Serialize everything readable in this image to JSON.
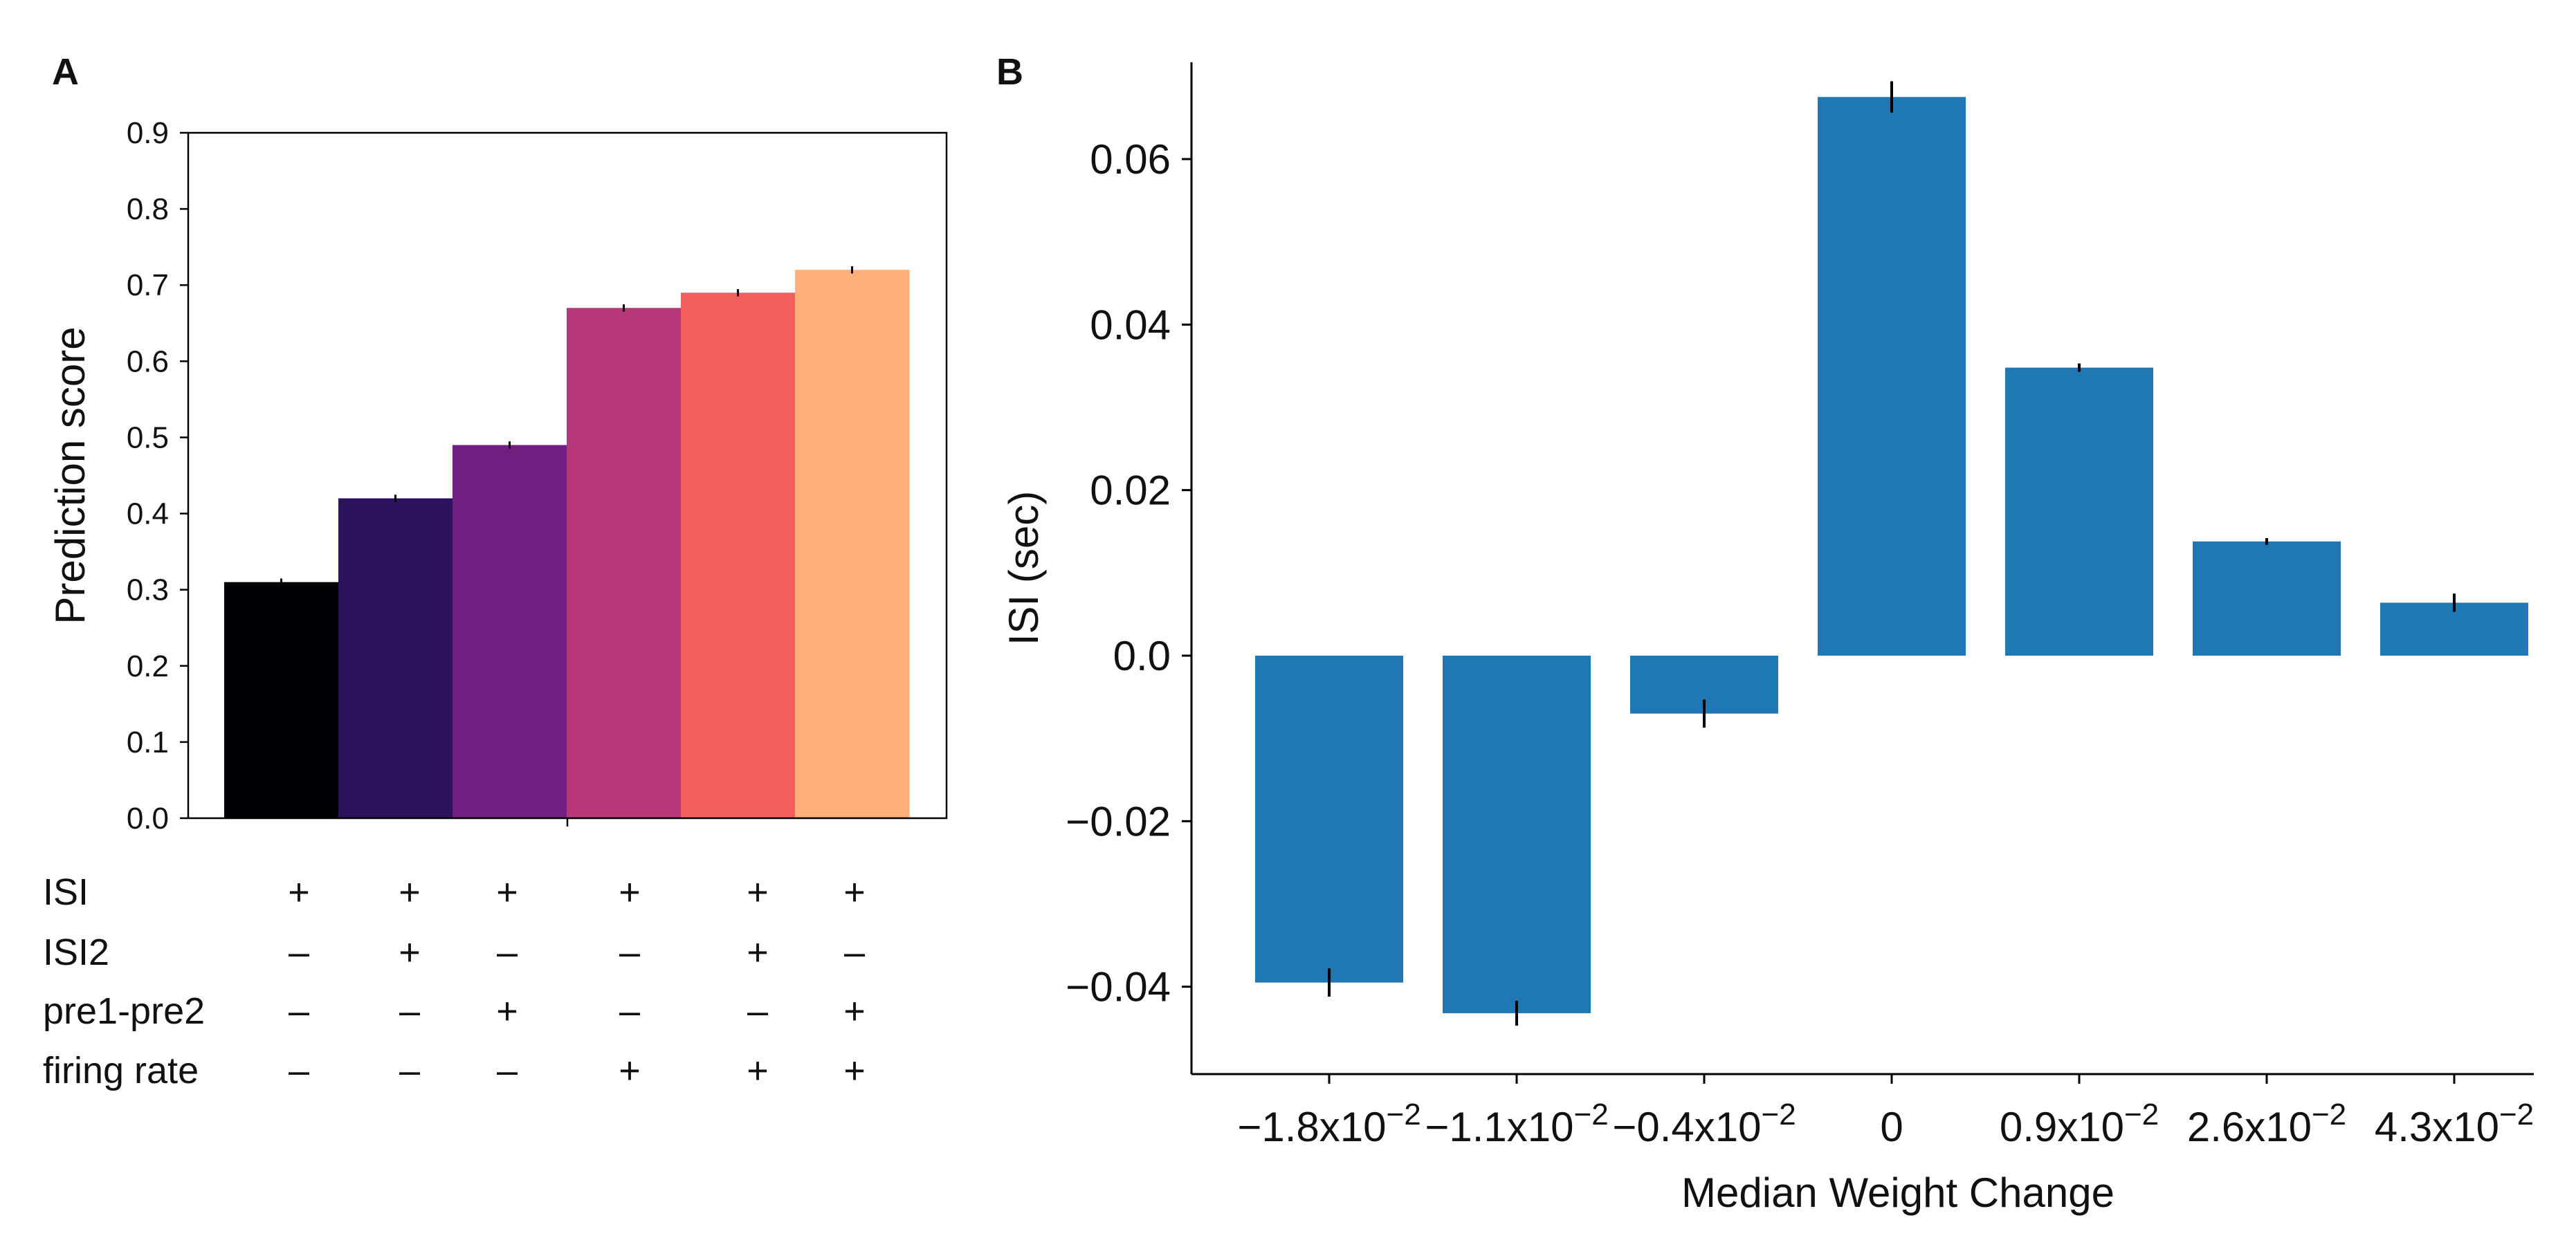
{
  "panels": {
    "a": {
      "label": "A"
    },
    "b": {
      "label": "B"
    }
  },
  "chart_data": [
    {
      "type": "bar",
      "panel": "A",
      "title": "",
      "xlabel": "",
      "ylabel": "Prediction score",
      "ylim": [
        0,
        0.9
      ],
      "yticks": [
        0.0,
        0.1,
        0.2,
        0.3,
        0.4,
        0.5,
        0.6,
        0.7,
        0.8,
        0.9
      ],
      "ytick_labels": [
        "0.0",
        "0.1",
        "0.2",
        "0.3",
        "0.4",
        "0.5",
        "0.6",
        "0.7",
        "0.8",
        "0.9"
      ],
      "categories": [
        "ISI",
        "ISI+ISI2",
        "ISI+pre1-pre2",
        "ISI+firing rate",
        "ISI+ISI2+firing rate",
        "ISI+pre1-pre2+firing rate"
      ],
      "values": [
        0.31,
        0.42,
        0.49,
        0.67,
        0.69,
        0.72
      ],
      "errors": [
        0.002,
        0.002,
        0.002,
        0.002,
        0.002,
        0.002
      ],
      "colors": [
        "#000004",
        "#2c115f",
        "#721f81",
        "#b73779",
        "#f1605d",
        "#feb078"
      ],
      "grid": false,
      "feature_table": {
        "rows": [
          "ISI",
          "ISI2",
          "pre1-pre2",
          "firing rate"
        ],
        "values": [
          [
            "+",
            "+",
            "+",
            "+",
            "+",
            "+"
          ],
          [
            "–",
            "+",
            "–",
            "–",
            "+",
            "–"
          ],
          [
            "–",
            "–",
            "+",
            "–",
            "–",
            "+"
          ],
          [
            "–",
            "–",
            "–",
            "+",
            "+",
            "+"
          ]
        ]
      }
    },
    {
      "type": "bar",
      "panel": "B",
      "title": "",
      "xlabel": "Median Weight Change",
      "ylabel": "ISI (sec)",
      "ylim": [
        -0.05,
        0.07
      ],
      "yticks": [
        -0.04,
        -0.02,
        0.0,
        0.02,
        0.04,
        0.06
      ],
      "ytick_labels": [
        "−0.04",
        "−0.02",
        "0.0",
        "0.02",
        "0.04",
        "0.06"
      ],
      "categories": [
        "−1.8x10⁻²",
        "−1.1x10⁻²",
        "−0.4x10⁻²",
        "0",
        "0.9x10⁻²",
        "2.6x10⁻²",
        "4.3x10⁻²"
      ],
      "category_parts": [
        {
          "base": "−1.8x10",
          "exp": "−2"
        },
        {
          "base": "−1.1x10",
          "exp": "−2"
        },
        {
          "base": "−0.4x10",
          "exp": "−2"
        },
        {
          "base": "0",
          "exp": ""
        },
        {
          "base": "0.9x10",
          "exp": "−2"
        },
        {
          "base": "2.6x10",
          "exp": "−2"
        },
        {
          "base": "4.3x10",
          "exp": "−2"
        }
      ],
      "values": [
        -0.0395,
        -0.0432,
        -0.007,
        0.0675,
        0.0348,
        0.0138,
        0.0064
      ],
      "errors": [
        0.0017,
        0.0015,
        0.0017,
        0.0019,
        0.0005,
        0.0004,
        0.0011
      ],
      "color": "#1f77b4",
      "grid": false
    }
  ]
}
